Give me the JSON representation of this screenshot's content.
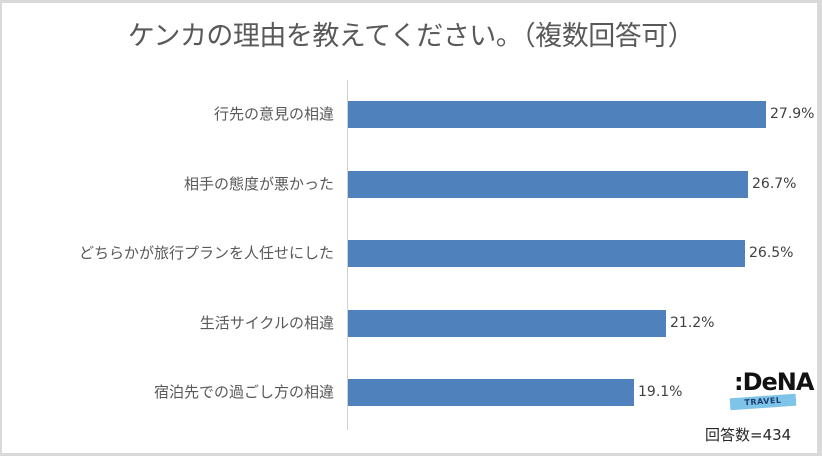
{
  "chart_data": {
    "type": "bar",
    "orientation": "horizontal",
    "title": "ケンカの理由を教えてください。（複数回答可）",
    "categories": [
      "行先の意見の相違",
      "相手の態度が悪かった",
      "どちらかが旅行プランを人任せにした",
      "生活サイクルの相違",
      "宿泊先での過ごし方の相違"
    ],
    "values": [
      27.9,
      26.7,
      26.5,
      21.2,
      19.1
    ],
    "value_labels": [
      "27.9%",
      "26.7%",
      "26.5%",
      "21.2%",
      "19.1%"
    ],
    "unit": "%",
    "xlabel": "",
    "ylabel": "",
    "grid": false,
    "legend": null,
    "bar_color": "#4f81bd",
    "annotations": [
      "回答数=434"
    ]
  },
  "header": {
    "title": "ケンカの理由を教えてください。（複数回答可）"
  },
  "footer": {
    "sample_size": "回答数=434",
    "logo_main": ":DeNA",
    "logo_sub": "TRAVEL"
  }
}
